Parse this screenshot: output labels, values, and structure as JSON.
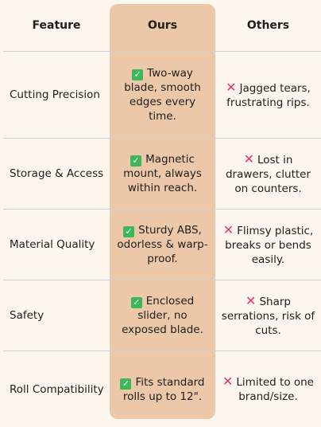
{
  "headers": {
    "feature": "Feature",
    "ours": "Ours",
    "others": "Others"
  },
  "rows": [
    {
      "feature": "Cutting Precision",
      "ours": "Two-way blade, smooth edges every time.",
      "others": "Jagged tears, frustrating rips."
    },
    {
      "feature": "Storage & Access",
      "ours": "Magnetic mount, always within reach.",
      "others": "Lost in drawers, clutter on counters."
    },
    {
      "feature": "Material Quality",
      "ours": "Sturdy ABS, odorless & warp-proof.",
      "others": "Flimsy plastic, breaks or bends easily."
    },
    {
      "feature": "Safety",
      "ours": "Enclosed slider, no exposed blade.",
      "others": "Sharp serrations, risk of cuts."
    },
    {
      "feature": "Roll Compatibility",
      "ours": "Fits standard rolls up to 12\".",
      "others": "Limited to one brand/size."
    }
  ],
  "icons": {
    "ours": "check-mark-icon",
    "others": "cross-mark-icon"
  },
  "colors": {
    "highlight": "#ecc7a8",
    "check": "#3db65c",
    "cross": "#e8336e",
    "background": "#fdf6ef"
  }
}
